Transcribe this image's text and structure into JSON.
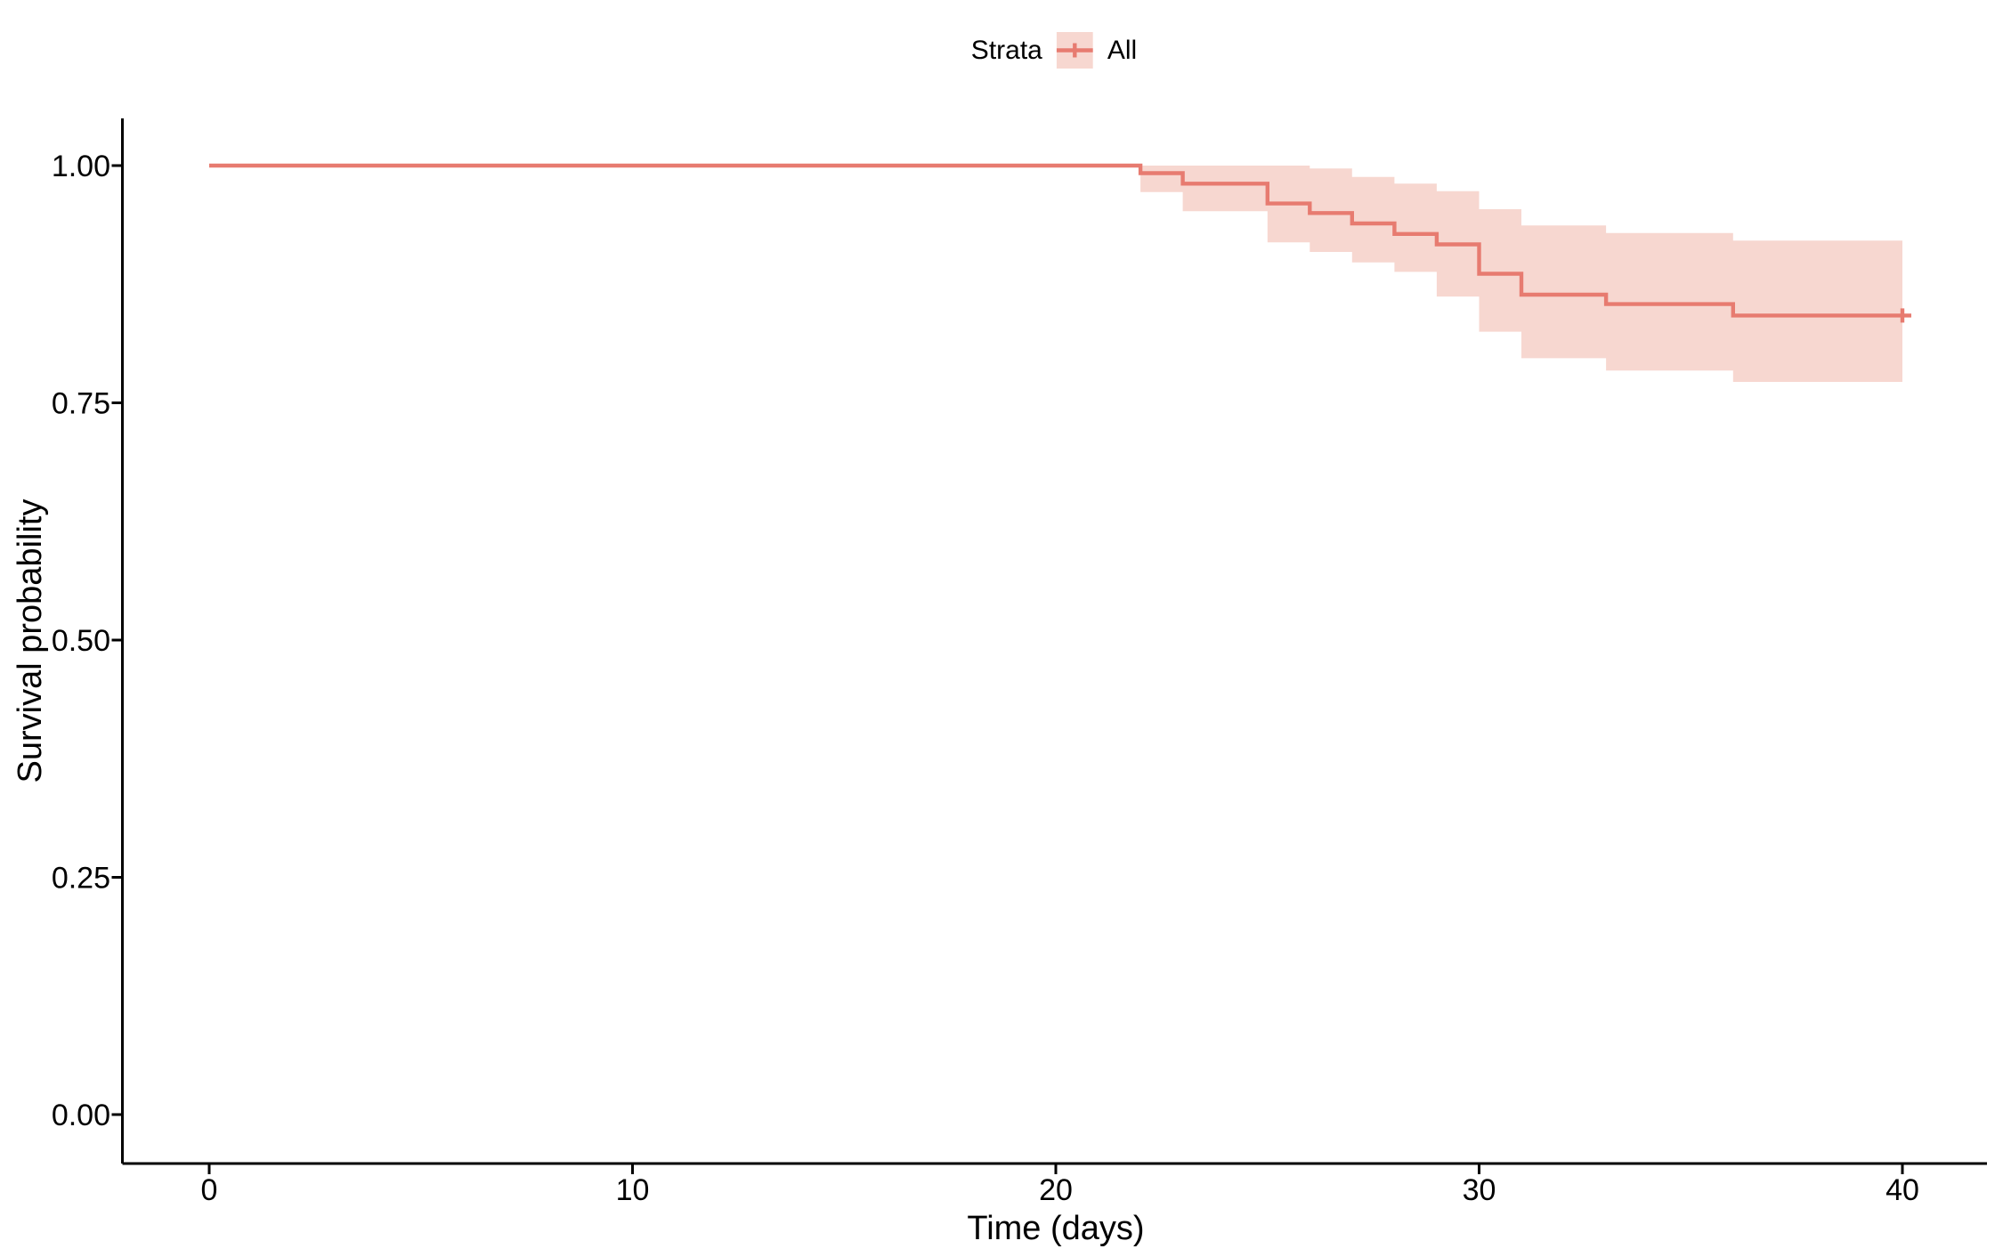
{
  "figure": {
    "background": "#FFFFFF"
  },
  "chart_data": {
    "type": "line",
    "subtype": "kaplan-meier-step-curve",
    "title": "",
    "xlabel": "Time (days)",
    "ylabel": "Survival probability",
    "xlim": [
      0,
      40
    ],
    "ylim": [
      0,
      1
    ],
    "xticks": [
      "0",
      "10",
      "20",
      "30",
      "40"
    ],
    "xtick_values": [
      0,
      10,
      20,
      30,
      40
    ],
    "yticks": [
      "0.00",
      "0.25",
      "0.50",
      "0.75",
      "1.00"
    ],
    "ytick_values": [
      0,
      0.25,
      0.5,
      0.75,
      1
    ],
    "grid": false,
    "axis_color": "#000000",
    "legend": {
      "title": "Strata",
      "position": "top",
      "entries": [
        {
          "label": "All",
          "color": "#E77B70",
          "fill": "#F7D7D0"
        }
      ]
    },
    "series": [
      {
        "name": "All",
        "color": "#E77B70",
        "ci_fill": "#F7D7D0",
        "steps": [
          {
            "time": 0,
            "surv": 1.0,
            "lower": 1.0,
            "upper": 1.0
          },
          {
            "time": 22,
            "surv": 0.992,
            "lower": 0.972,
            "upper": 1.0
          },
          {
            "time": 23,
            "surv": 0.981,
            "lower": 0.952,
            "upper": 1.0
          },
          {
            "time": 25,
            "surv": 0.96,
            "lower": 0.919,
            "upper": 1.0
          },
          {
            "time": 26,
            "surv": 0.95,
            "lower": 0.909,
            "upper": 0.997
          },
          {
            "time": 27,
            "surv": 0.939,
            "lower": 0.898,
            "upper": 0.988
          },
          {
            "time": 28,
            "surv": 0.928,
            "lower": 0.888,
            "upper": 0.981
          },
          {
            "time": 29,
            "surv": 0.917,
            "lower": 0.862,
            "upper": 0.973
          },
          {
            "time": 30,
            "surv": 0.886,
            "lower": 0.825,
            "upper": 0.954
          },
          {
            "time": 31,
            "surv": 0.864,
            "lower": 0.797,
            "upper": 0.937
          },
          {
            "time": 33,
            "surv": 0.854,
            "lower": 0.784,
            "upper": 0.929
          },
          {
            "time": 36,
            "surv": 0.842,
            "lower": 0.772,
            "upper": 0.921
          },
          {
            "time": 40,
            "surv": 0.842,
            "lower": 0.772,
            "upper": 0.921
          }
        ],
        "censored": [
          {
            "time": 40,
            "surv": 0.842
          }
        ]
      }
    ]
  }
}
